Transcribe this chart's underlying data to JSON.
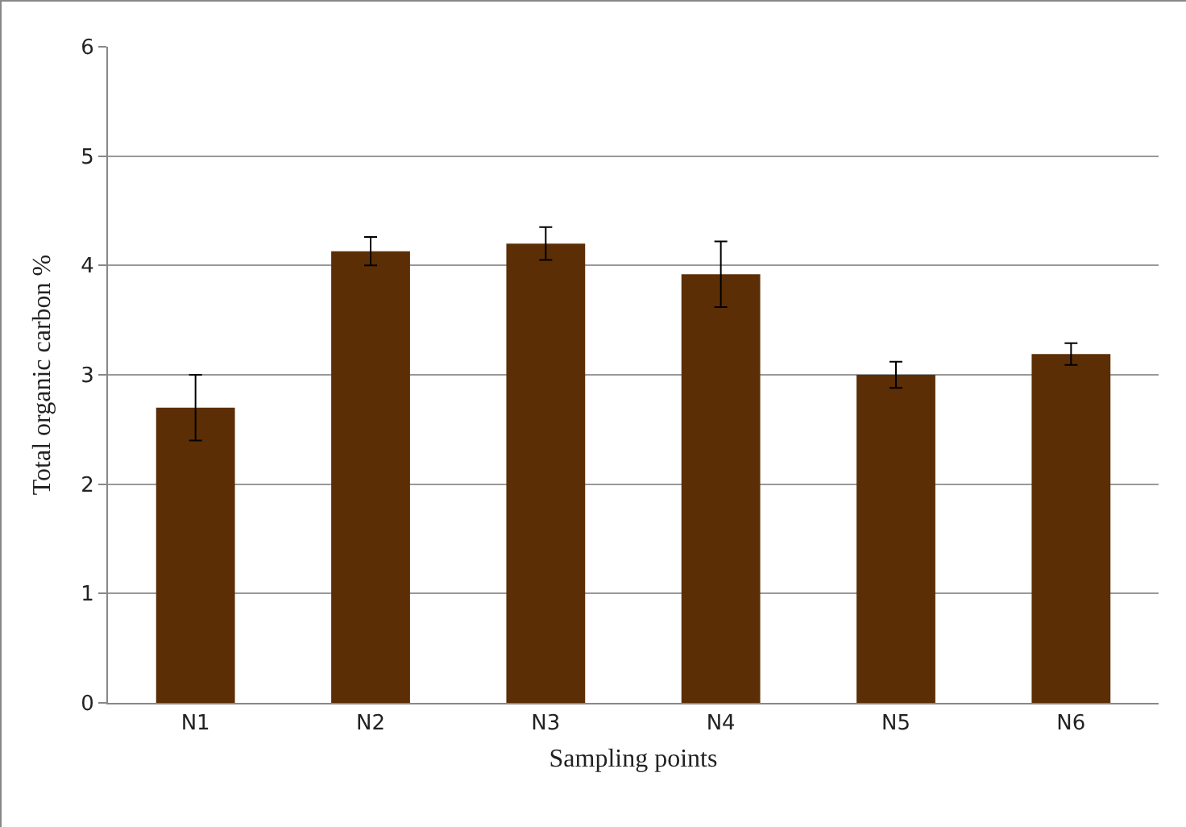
{
  "chart_data": {
    "type": "bar",
    "xlabel": "Sampling points",
    "ylabel": "Total organic carbon %",
    "categories": [
      "N1",
      "N2",
      "N3",
      "N4",
      "N5",
      "N6"
    ],
    "values": [
      2.7,
      4.13,
      4.2,
      3.92,
      3.0,
      3.19
    ],
    "errors": [
      0.3,
      0.13,
      0.15,
      0.3,
      0.12,
      0.1
    ],
    "color": "#5c2e05",
    "ylim": [
      0,
      6
    ],
    "yticks": [
      0,
      1,
      2,
      3,
      4,
      5,
      6
    ],
    "grid": "y"
  }
}
